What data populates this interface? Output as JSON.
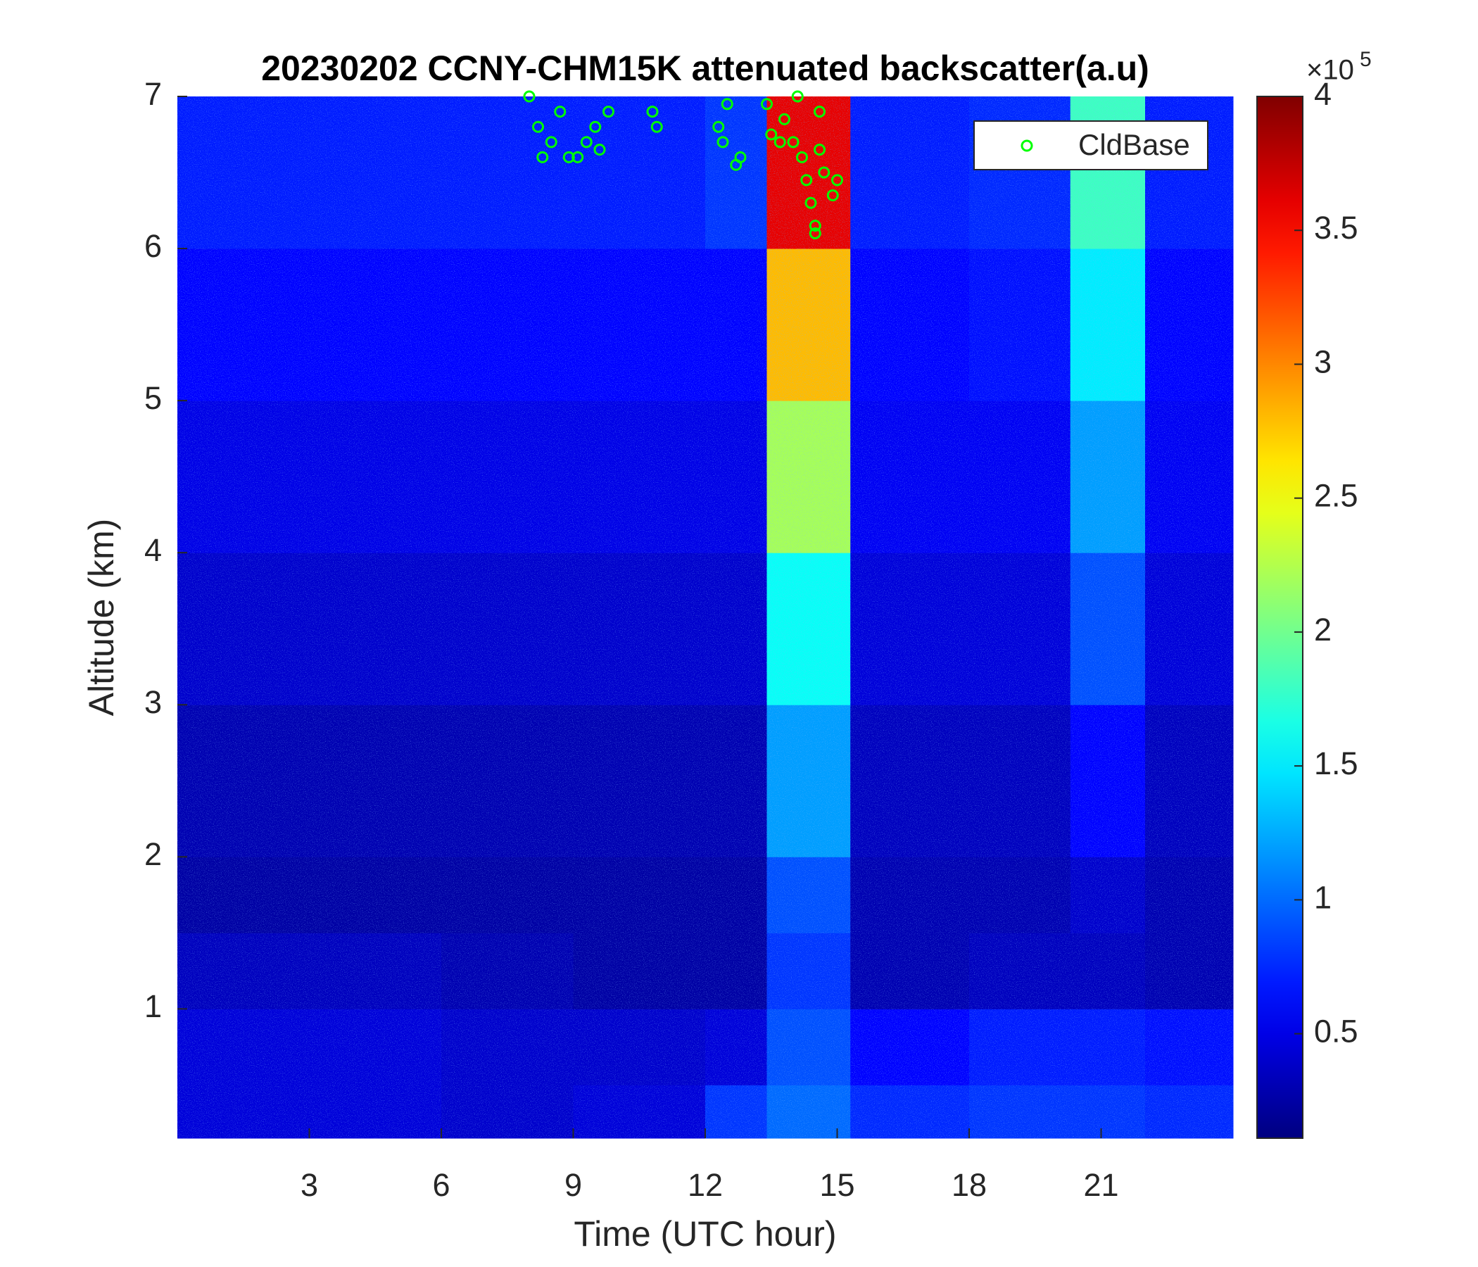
{
  "chart_data": {
    "type": "heatmap",
    "title": "20230202 CCNY-CHM15K attenuated backscatter(a.u)",
    "xlabel": "Time (UTC hour)",
    "ylabel": "Altitude (km)",
    "xlim": [
      0,
      24
    ],
    "ylim": [
      0.15,
      7
    ],
    "xticks": [
      3,
      6,
      9,
      12,
      15,
      18,
      21
    ],
    "yticks": [
      1,
      2,
      3,
      4,
      5,
      6,
      7
    ],
    "x_edges": [
      0,
      3,
      6,
      9,
      12,
      13.4,
      15.3,
      18,
      20.3,
      22,
      24
    ],
    "y_edges": [
      0.15,
      0.5,
      1,
      1.5,
      2,
      3,
      4,
      5,
      6,
      7
    ],
    "z": [
      [
        0.45,
        0.45,
        0.4,
        0.45,
        0.8,
        1.0,
        0.75,
        0.8,
        0.8,
        0.75
      ],
      [
        0.45,
        0.45,
        0.4,
        0.4,
        0.45,
        0.9,
        0.6,
        0.7,
        0.7,
        0.65
      ],
      [
        0.35,
        0.35,
        0.3,
        0.25,
        0.25,
        0.8,
        0.3,
        0.35,
        0.35,
        0.3
      ],
      [
        0.25,
        0.25,
        0.25,
        0.25,
        0.25,
        0.9,
        0.3,
        0.3,
        0.4,
        0.3
      ],
      [
        0.3,
        0.3,
        0.3,
        0.3,
        0.3,
        1.2,
        0.35,
        0.35,
        0.6,
        0.35
      ],
      [
        0.4,
        0.4,
        0.4,
        0.4,
        0.4,
        1.6,
        0.45,
        0.45,
        0.9,
        0.45
      ],
      [
        0.5,
        0.5,
        0.5,
        0.5,
        0.5,
        2.2,
        0.55,
        0.55,
        1.2,
        0.55
      ],
      [
        0.6,
        0.6,
        0.6,
        0.6,
        0.6,
        2.8,
        0.6,
        0.65,
        1.5,
        0.6
      ],
      [
        0.7,
        0.7,
        0.7,
        0.7,
        0.8,
        3.6,
        0.7,
        0.75,
        1.8,
        0.7
      ]
    ],
    "colormap": "jet",
    "clim": [
      0.11,
      4
    ],
    "colorbar_ticks": [
      0.5,
      1,
      1.5,
      2,
      2.5,
      3,
      3.5,
      4
    ],
    "colorbar_multiplier": "×10",
    "colorbar_exponent": "5",
    "legend": "upper right",
    "series": [
      {
        "name": "CldBase",
        "color": "#00ff00",
        "marker": "circle",
        "x": [
          8.0,
          8.2,
          8.3,
          8.5,
          8.7,
          8.9,
          9.1,
          9.3,
          9.5,
          9.6,
          9.8,
          10.8,
          10.9,
          12.3,
          12.4,
          12.5,
          12.7,
          12.8,
          13.4,
          13.5,
          13.7,
          13.8,
          14.0,
          14.1,
          14.2,
          14.3,
          14.4,
          14.5,
          14.5,
          14.6,
          14.6,
          14.7,
          14.9,
          15.0
        ],
        "y": [
          7.0,
          6.8,
          6.6,
          6.7,
          6.9,
          6.6,
          6.6,
          6.7,
          6.8,
          6.65,
          6.9,
          6.9,
          6.8,
          6.8,
          6.7,
          6.95,
          6.55,
          6.6,
          6.95,
          6.75,
          6.7,
          6.85,
          6.7,
          7.0,
          6.6,
          6.45,
          6.3,
          6.15,
          6.1,
          6.9,
          6.65,
          6.5,
          6.35,
          6.45
        ]
      }
    ]
  }
}
